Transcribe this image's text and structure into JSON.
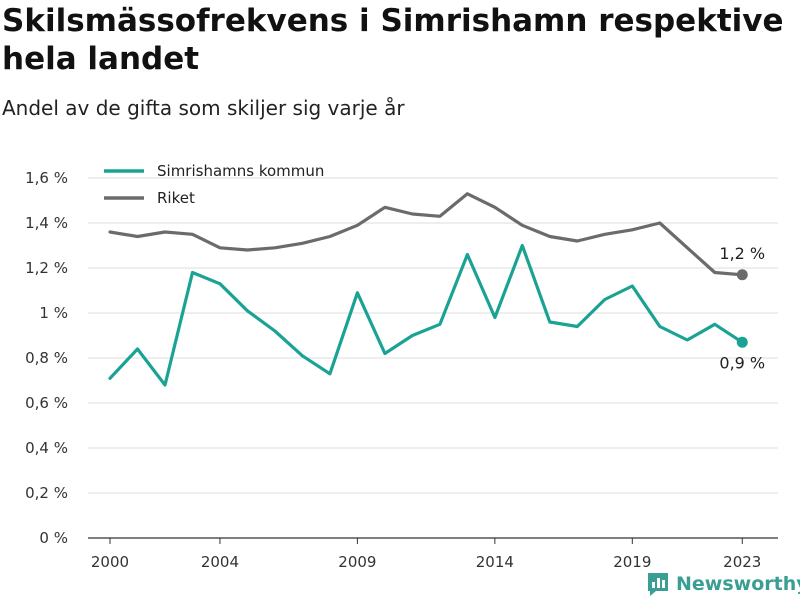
{
  "header": {
    "title": "Skilsmässofrekvens i Simrishamn respektive hela landet",
    "subtitle": "Andel av de gifta som skiljer sig varje år"
  },
  "brand": {
    "name": "Newsworthy",
    "color": "#3a9e92"
  },
  "chart_data": {
    "type": "line",
    "x": [
      2000,
      2001,
      2002,
      2003,
      2004,
      2005,
      2006,
      2007,
      2008,
      2009,
      2010,
      2011,
      2012,
      2013,
      2014,
      2015,
      2016,
      2017,
      2018,
      2019,
      2020,
      2021,
      2022,
      2023
    ],
    "x_ticks": [
      2000,
      2004,
      2009,
      2014,
      2019,
      2023
    ],
    "x_tick_labels": [
      "2000",
      "2004",
      "2009",
      "2014",
      "2019",
      "2023"
    ],
    "xlim": [
      1999.2,
      2024.3
    ],
    "ylim": [
      0,
      1.6
    ],
    "y_ticks": [
      0,
      0.2,
      0.4,
      0.6,
      0.8,
      1.0,
      1.2,
      1.4,
      1.6
    ],
    "y_tick_labels": [
      "0 %",
      "0,2 %",
      "0,4 %",
      "0,6 %",
      "0,8 %",
      "1 %",
      "1,2 %",
      "1,4 %",
      "1,6 %"
    ],
    "grid": true,
    "legend_position": "top-left",
    "series": [
      {
        "name": "Simrishamns kommun",
        "color": "#1aa394",
        "values": [
          0.71,
          0.84,
          0.68,
          1.18,
          1.13,
          1.01,
          0.92,
          0.81,
          0.73,
          1.09,
          0.82,
          0.9,
          0.95,
          1.26,
          0.98,
          1.3,
          0.96,
          0.94,
          1.06,
          1.12,
          0.94,
          0.88,
          0.95,
          0.87
        ],
        "end_label": "0,9 %"
      },
      {
        "name": "Riket",
        "color": "#6b6b6b",
        "values": [
          1.36,
          1.34,
          1.36,
          1.35,
          1.29,
          1.28,
          1.29,
          1.31,
          1.34,
          1.39,
          1.47,
          1.44,
          1.43,
          1.53,
          1.47,
          1.39,
          1.34,
          1.32,
          1.35,
          1.37,
          1.4,
          1.29,
          1.18,
          1.17
        ],
        "end_label": "1,2 %"
      }
    ]
  }
}
